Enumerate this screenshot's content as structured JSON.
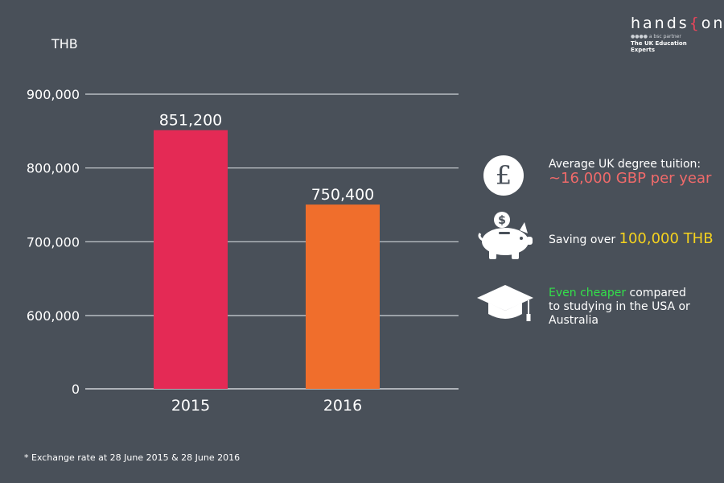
{
  "brand": {
    "name_prefix": "hands",
    "brace": "{",
    "name_suffix": "on",
    "partner": "●●●● a bsc partner",
    "tagline": "The UK Education Experts"
  },
  "chart_data": {
    "type": "bar",
    "ylabel": "THB",
    "categories": [
      "2015",
      "2016"
    ],
    "values": [
      851200,
      750400
    ],
    "data_labels": [
      "851,200",
      "750,400"
    ],
    "bar_colors": [
      "#e42a55",
      "#f06e2c"
    ],
    "y_ticks": [
      {
        "value": 0,
        "label": "0"
      },
      {
        "value": 600000,
        "label": "600,000"
      },
      {
        "value": 700000,
        "label": "700,000"
      },
      {
        "value": 800000,
        "label": "800,000"
      },
      {
        "value": 900000,
        "label": "900,000"
      }
    ],
    "ylim": [
      0,
      900000
    ],
    "axis_break": true,
    "grid": true
  },
  "info": [
    {
      "icon": "pound-coin-icon",
      "line1": "Average UK degree tuition:",
      "line2": "~16,000 GBP per year",
      "accent": "#f06a6a"
    },
    {
      "icon": "piggy-bank-icon",
      "prefix": "Saving over ",
      "highlight": "100,000 THB",
      "accent": "#f5d21e"
    },
    {
      "icon": "graduation-cap-icon",
      "highlight": "Even cheaper",
      "rest1": " compared",
      "line2": "to studying in the USA or",
      "line3": "Australia",
      "accent": "#33e04a"
    }
  ],
  "footnote": "* Exchange rate at 28 June 2015 & 28 June 2016"
}
